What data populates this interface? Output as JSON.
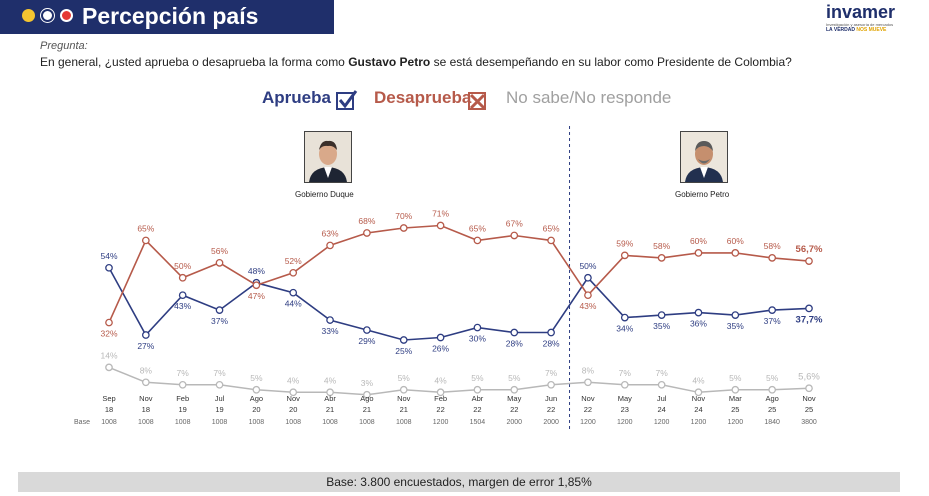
{
  "header": {
    "title": "Percepción país",
    "colors": {
      "bar": "#1f2f6b",
      "dot1": "#f4c430",
      "dot2": "#ffffff",
      "dot3": "#e53935"
    }
  },
  "brand": {
    "name": "invamer",
    "subtitle": "Investigación y asesoría de mercados",
    "tagline": "LA VERDAD",
    "tagline_highlight": "NOS MUEVE"
  },
  "question": {
    "label": "Pregunta:",
    "text_before": "En general, ¿usted aprueba o desaprueba la forma como ",
    "text_bold": "Gustavo Petro",
    "text_after": " se está desempeñando en su labor como Presidente de Colombia?"
  },
  "legend": {
    "approve": "Aprueba",
    "disapprove": "Desaprueba",
    "no_answer": "No sabe/No responde",
    "approve_icon": "checkmark-box-icon",
    "disapprove_icon": "x-box-icon"
  },
  "presidents": {
    "duque": {
      "label": "Gobierno Duque",
      "icon": "portrait-duque-icon"
    },
    "petro": {
      "label": "Gobierno Petro",
      "icon": "portrait-petro-icon"
    }
  },
  "chart_data": {
    "type": "line",
    "title": "",
    "categories": [
      [
        "Sep",
        "18"
      ],
      [
        "Nov",
        "18"
      ],
      [
        "Feb",
        "19"
      ],
      [
        "Jul",
        "19"
      ],
      [
        "Ago",
        "20"
      ],
      [
        "Nov",
        "20"
      ],
      [
        "Abr",
        "21"
      ],
      [
        "Ago",
        "21"
      ],
      [
        "Nov",
        "21"
      ],
      [
        "Feb",
        "22"
      ],
      [
        "Abr",
        "22"
      ],
      [
        "May",
        "22"
      ],
      [
        "Jun",
        "22"
      ],
      [
        "Nov",
        "22"
      ],
      [
        "May",
        "23"
      ],
      [
        "Jul",
        "24"
      ],
      [
        "Nov",
        "24"
      ],
      [
        "Mar",
        "25"
      ],
      [
        "Ago",
        "25"
      ],
      [
        "Nov",
        "25"
      ]
    ],
    "base_label": "Base",
    "bases": [
      "1008",
      "1008",
      "1008",
      "1008",
      "1008",
      "1008",
      "1008",
      "1008",
      "1008",
      "1200",
      "1504",
      "2000",
      "2000",
      "1200",
      "1200",
      "1200",
      "1200",
      "1200",
      "1840",
      "3800"
    ],
    "series": [
      {
        "name": "Aprueba",
        "color": "#2e3d82",
        "values": [
          54,
          27,
          43,
          37,
          48,
          44,
          33,
          29,
          25,
          26,
          30,
          28,
          28,
          50,
          34,
          35,
          36,
          35,
          37,
          37.7
        ],
        "labels": [
          "54%",
          "27%",
          "43%",
          "37%",
          "48%",
          "44%",
          "33%",
          "29%",
          "25%",
          "26%",
          "30%",
          "28%",
          "28%",
          "50%",
          "34%",
          "35%",
          "36%",
          "35%",
          "37%",
          "37,7%"
        ]
      },
      {
        "name": "Desaprueba",
        "color": "#b65a4a",
        "values": [
          32,
          65,
          50,
          56,
          47,
          52,
          63,
          68,
          70,
          71,
          65,
          67,
          65,
          43,
          59,
          58,
          60,
          60,
          58,
          56.7
        ],
        "labels": [
          "32%",
          "65%",
          "50%",
          "56%",
          "47%",
          "52%",
          "63%",
          "68%",
          "70%",
          "71%",
          "65%",
          "67%",
          "65%",
          "43%",
          "59%",
          "58%",
          "60%",
          "60%",
          "58%",
          "56,7%"
        ]
      },
      {
        "name": "No sabe/No responde",
        "color": "#b8b8b8",
        "values": [
          14,
          8,
          7,
          7,
          5,
          4,
          4,
          3,
          5,
          4,
          5,
          5,
          7,
          8,
          7,
          7,
          4,
          5,
          5,
          5.6
        ],
        "labels": [
          "14%",
          "8%",
          "7%",
          "7%",
          "5%",
          "4%",
          "4%",
          "3%",
          "5%",
          "4%",
          "5%",
          "5%",
          "7%",
          "8%",
          "7%",
          "7%",
          "4%",
          "5%",
          "5%",
          "5,6%"
        ]
      }
    ],
    "divider_after_index": 12,
    "grid": false
  },
  "footer": {
    "text": "Base: 3.800 encuestados, margen de error 1,85%"
  }
}
